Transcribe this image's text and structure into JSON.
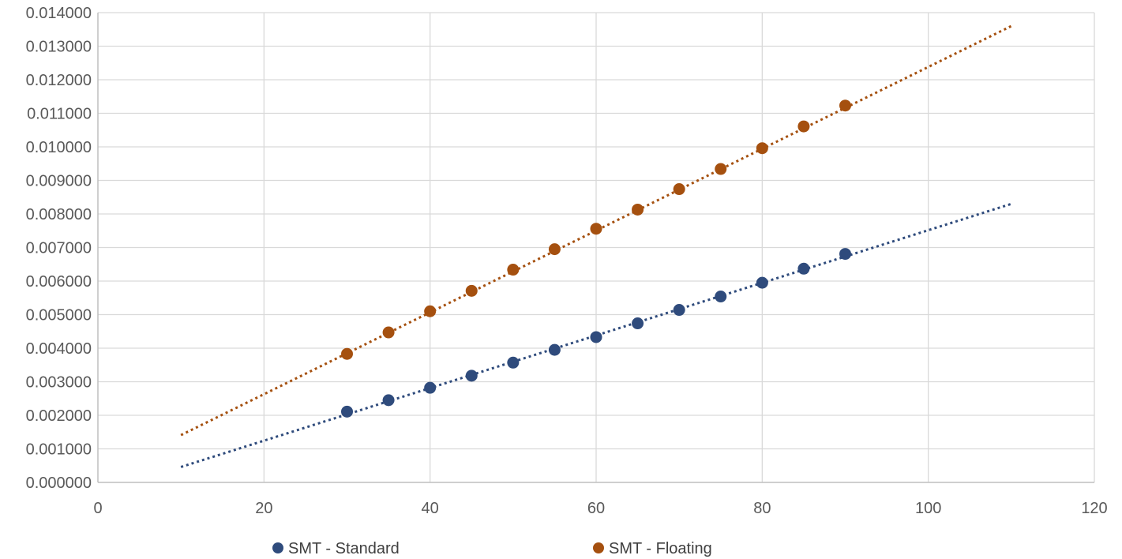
{
  "chart_data": {
    "type": "scatter",
    "title": "",
    "xlabel": "",
    "ylabel": "",
    "xlim": [
      0,
      120
    ],
    "ylim": [
      0,
      0.014
    ],
    "x_ticks": [
      0,
      20,
      40,
      60,
      80,
      100,
      120
    ],
    "x_tick_labels": [
      "0",
      "20",
      "40",
      "60",
      "80",
      "100",
      "120"
    ],
    "y_ticks": [
      0,
      0.001,
      0.002,
      0.003,
      0.004,
      0.005,
      0.006,
      0.007,
      0.008,
      0.009,
      0.01,
      0.011,
      0.012,
      0.013,
      0.014
    ],
    "y_tick_labels": [
      "0.000000",
      "0.001000",
      "0.002000",
      "0.003000",
      "0.004000",
      "0.005000",
      "0.006000",
      "0.007000",
      "0.008000",
      "0.009000",
      "0.010000",
      "0.011000",
      "0.012000",
      "0.013000",
      "0.014000"
    ],
    "grid": true,
    "legend_position": "bottom",
    "series": [
      {
        "name": "SMT - Standard",
        "color": "#2f4b7c",
        "x": [
          30,
          35,
          40,
          45,
          50,
          55,
          60,
          65,
          70,
          75,
          80,
          85,
          90
        ],
        "y": [
          0.00211,
          0.00245,
          0.00282,
          0.00318,
          0.00357,
          0.00395,
          0.00433,
          0.00474,
          0.00514,
          0.00554,
          0.00595,
          0.00637,
          0.00681
        ],
        "trendline": {
          "type": "linear",
          "x": [
            10,
            110
          ],
          "y": [
            0.00046,
            0.0083
          ]
        }
      },
      {
        "name": "SMT - Floating",
        "color": "#a5500f",
        "x": [
          30,
          35,
          40,
          45,
          50,
          55,
          60,
          65,
          70,
          75,
          80,
          85,
          90
        ],
        "y": [
          0.00383,
          0.00447,
          0.0051,
          0.00571,
          0.00634,
          0.00695,
          0.00756,
          0.00813,
          0.00874,
          0.00934,
          0.00996,
          0.01061,
          0.01123
        ],
        "trendline": {
          "type": "linear",
          "x": [
            10,
            110
          ],
          "y": [
            0.00141,
            0.0136
          ]
        }
      }
    ]
  }
}
